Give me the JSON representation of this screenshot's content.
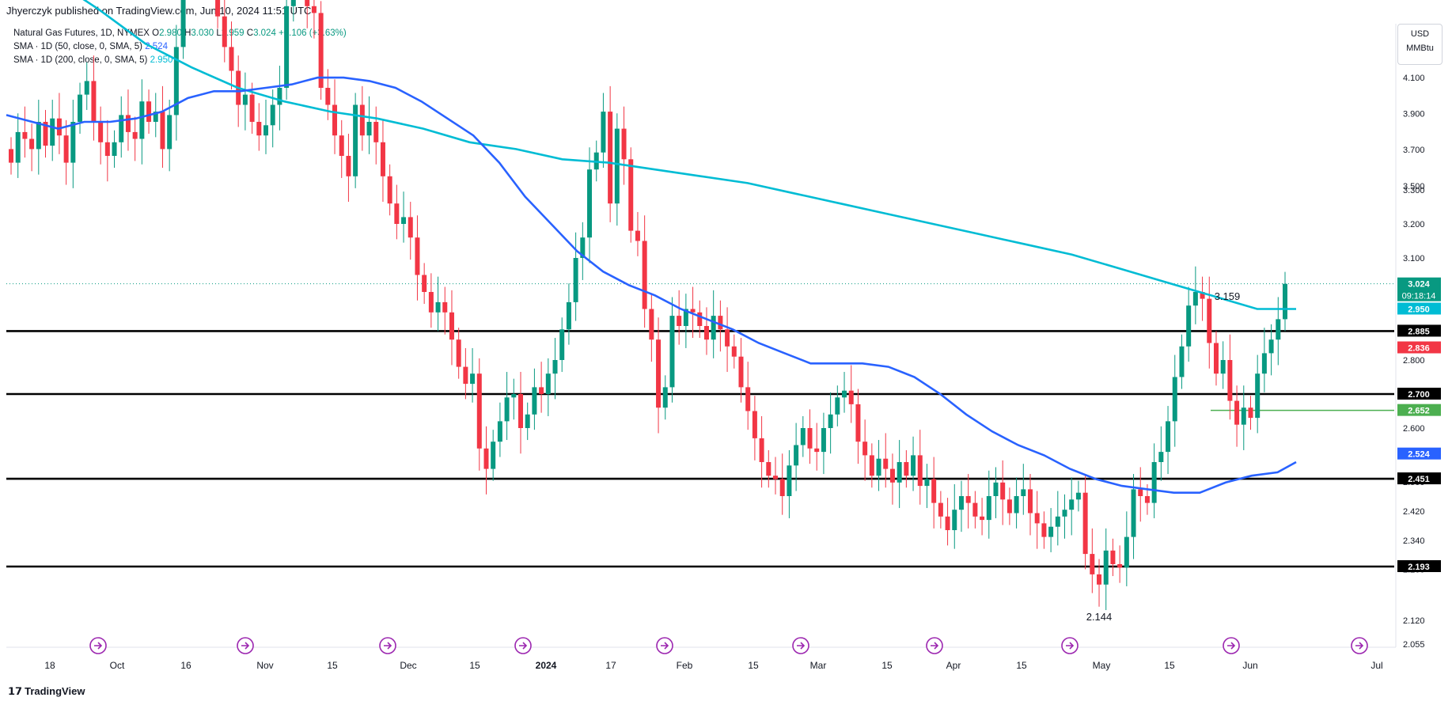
{
  "header": {
    "published": "Jhyerczyk published on TradingView.com, Jun 10, 2024 11:51 UTC"
  },
  "legend": {
    "symbol": "Natural Gas Futures, 1D, NYMEX",
    "ohlc": {
      "o": "2.980",
      "h": "3.030",
      "l": "2.959",
      "c": "3.024",
      "chg": "+0.106 (+3.63%)"
    },
    "sma50": {
      "label": "SMA · 1D (50, close, 0, SMA, 5)",
      "value": "2.524"
    },
    "sma200": {
      "label": "SMA · 1D (200, close, 0, SMA, 5)",
      "value": "2.950"
    }
  },
  "unit_box": {
    "currency": "USD",
    "unit": "MMBtu"
  },
  "brand": {
    "name": "TradingView",
    "logo": "tradingview-logo-icon"
  },
  "colors": {
    "up": "#089981",
    "down": "#f23645",
    "sma50": "#2962ff",
    "sma200": "#00bcd4",
    "level": "#000000",
    "support_short": "#4caf50"
  },
  "chart_data": {
    "type": "candlestick",
    "title": "",
    "xlabel": "",
    "ylabel": "",
    "ylim": [
      2.055,
      4.25
    ],
    "y_ticks": [
      "4.100",
      "3.900",
      "3.700",
      "3.500",
      "3.300",
      "3.200",
      "3.100",
      "2.800",
      "2.600",
      "2.500",
      "2.420",
      "2.340",
      "2.260",
      "2.120",
      "2.055"
    ],
    "x_ticks": [
      "18",
      "Oct",
      "16",
      "Nov",
      "15",
      "Dec",
      "15",
      "2024",
      "17",
      "Feb",
      "15",
      "Mar",
      "15",
      "Apr",
      "15",
      "May",
      "15",
      "Jun",
      "Jul"
    ],
    "horizontal_levels": [
      2.885,
      2.7,
      2.451,
      2.193
    ],
    "short_level": 2.652,
    "price_labels": [
      {
        "text": "3.024",
        "value": 3.024,
        "color": "#089981",
        "sub": "09:18:14"
      },
      {
        "text": "2.950",
        "value": 2.95,
        "color": "#00bcd4"
      },
      {
        "text": "2.885",
        "value": 2.885,
        "color": "#000000"
      },
      {
        "text": "2.836",
        "value": 2.836,
        "color": "#f23645"
      },
      {
        "text": "2.700",
        "value": 2.7,
        "color": "#000000"
      },
      {
        "text": "2.652",
        "value": 2.652,
        "color": "#4caf50"
      },
      {
        "text": "2.524",
        "value": 2.524,
        "color": "#2962ff"
      },
      {
        "text": "2.451",
        "value": 2.451,
        "color": "#000000"
      },
      {
        "text": "2.193",
        "value": 2.193,
        "color": "#000000"
      }
    ],
    "annotations": [
      {
        "text": "3.159",
        "at": "high"
      },
      {
        "text": "2.144",
        "at": "low"
      }
    ],
    "current_price": 3.024,
    "candles_close": [
      3.38,
      3.47,
      3.45,
      3.42,
      3.5,
      3.43,
      3.51,
      3.46,
      3.38,
      3.5,
      3.58,
      3.62,
      3.5,
      3.44,
      3.4,
      3.44,
      3.52,
      3.47,
      3.45,
      3.56,
      3.5,
      3.53,
      3.42,
      3.52,
      3.72,
      3.94,
      3.96,
      3.98,
      3.97,
      3.96,
      3.81,
      3.72,
      3.65,
      3.55,
      3.58,
      3.5,
      3.46,
      3.49,
      3.55,
      3.6,
      3.84,
      3.95,
      3.93,
      3.84,
      3.82,
      3.6,
      3.55,
      3.46,
      3.4,
      3.34,
      3.55,
      3.46,
      3.5,
      3.44,
      3.34,
      3.26,
      3.2,
      3.22,
      3.16,
      3.05,
      3.0,
      2.94,
      2.97,
      2.94,
      2.86,
      2.78,
      2.73,
      2.76,
      2.54,
      2.48,
      2.56,
      2.62,
      2.69,
      2.7,
      2.6,
      2.64,
      2.72,
      2.7,
      2.76,
      2.8,
      2.89,
      2.97,
      3.1,
      3.16,
      3.36,
      3.41,
      3.53,
      3.26,
      3.48,
      3.39,
      3.18,
      3.15,
      2.95,
      2.86,
      2.66,
      2.72,
      2.93,
      2.9,
      2.95,
      2.94,
      2.9,
      2.86,
      2.93,
      2.89,
      2.84,
      2.81,
      2.72,
      2.65,
      2.57,
      2.5,
      2.46,
      2.45,
      2.4,
      2.49,
      2.55,
      2.6,
      2.54,
      2.53,
      2.6,
      2.64,
      2.69,
      2.71,
      2.67,
      2.56,
      2.52,
      2.46,
      2.51,
      2.48,
      2.44,
      2.5,
      2.46,
      2.52,
      2.43,
      2.45,
      2.38,
      2.34,
      2.3,
      2.36,
      2.4,
      2.38,
      2.34,
      2.33,
      2.4,
      2.44,
      2.39,
      2.35,
      2.4,
      2.42,
      2.35,
      2.32,
      2.28,
      2.31,
      2.34,
      2.36,
      2.39,
      2.41,
      2.23,
      2.17,
      2.14,
      2.24,
      2.2,
      2.19,
      2.28,
      2.42,
      2.4,
      2.38,
      2.5,
      2.53,
      2.62,
      2.75,
      2.84,
      2.96,
      3.0,
      2.98,
      2.85,
      2.76,
      2.8,
      2.68,
      2.61,
      2.66,
      2.63,
      2.76,
      2.82,
      2.86,
      2.92,
      3.024
    ],
    "sma50_points": [
      [
        0,
        3.52
      ],
      [
        28,
        3.5
      ],
      [
        56,
        3.48
      ],
      [
        84,
        3.5
      ],
      [
        112,
        3.5
      ],
      [
        140,
        3.51
      ],
      [
        168,
        3.53
      ],
      [
        196,
        3.57
      ],
      [
        224,
        3.59
      ],
      [
        252,
        3.59
      ],
      [
        280,
        3.6
      ],
      [
        308,
        3.61
      ],
      [
        336,
        3.63
      ],
      [
        364,
        3.63
      ],
      [
        392,
        3.62
      ],
      [
        420,
        3.6
      ],
      [
        448,
        3.56
      ],
      [
        476,
        3.51
      ],
      [
        504,
        3.46
      ],
      [
        532,
        3.38
      ],
      [
        560,
        3.28
      ],
      [
        588,
        3.2
      ],
      [
        616,
        3.12
      ],
      [
        644,
        3.06
      ],
      [
        672,
        3.02
      ],
      [
        700,
        2.99
      ],
      [
        728,
        2.95
      ],
      [
        756,
        2.92
      ],
      [
        784,
        2.89
      ],
      [
        812,
        2.85
      ],
      [
        840,
        2.82
      ],
      [
        868,
        2.79
      ],
      [
        896,
        2.79
      ],
      [
        924,
        2.79
      ],
      [
        952,
        2.78
      ],
      [
        980,
        2.75
      ],
      [
        1008,
        2.7
      ],
      [
        1036,
        2.64
      ],
      [
        1064,
        2.59
      ],
      [
        1092,
        2.55
      ],
      [
        1120,
        2.52
      ],
      [
        1148,
        2.48
      ],
      [
        1176,
        2.45
      ],
      [
        1204,
        2.43
      ],
      [
        1232,
        2.42
      ],
      [
        1260,
        2.41
      ],
      [
        1288,
        2.41
      ],
      [
        1316,
        2.44
      ],
      [
        1344,
        2.46
      ],
      [
        1372,
        2.47
      ],
      [
        1392,
        2.5
      ]
    ],
    "sma200_points": [
      [
        0,
        4.02
      ],
      [
        50,
        3.92
      ],
      [
        100,
        3.83
      ],
      [
        150,
        3.73
      ],
      [
        200,
        3.66
      ],
      [
        250,
        3.6
      ],
      [
        300,
        3.56
      ],
      [
        350,
        3.53
      ],
      [
        400,
        3.51
      ],
      [
        450,
        3.48
      ],
      [
        500,
        3.44
      ],
      [
        550,
        3.42
      ],
      [
        600,
        3.39
      ],
      [
        650,
        3.38
      ],
      [
        700,
        3.36
      ],
      [
        750,
        3.34
      ],
      [
        800,
        3.32
      ],
      [
        850,
        3.29
      ],
      [
        900,
        3.26
      ],
      [
        950,
        3.23
      ],
      [
        1000,
        3.2
      ],
      [
        1050,
        3.17
      ],
      [
        1100,
        3.14
      ],
      [
        1150,
        3.11
      ],
      [
        1200,
        3.07
      ],
      [
        1250,
        3.03
      ],
      [
        1300,
        2.99
      ],
      [
        1350,
        2.95
      ],
      [
        1392,
        2.95
      ]
    ]
  }
}
